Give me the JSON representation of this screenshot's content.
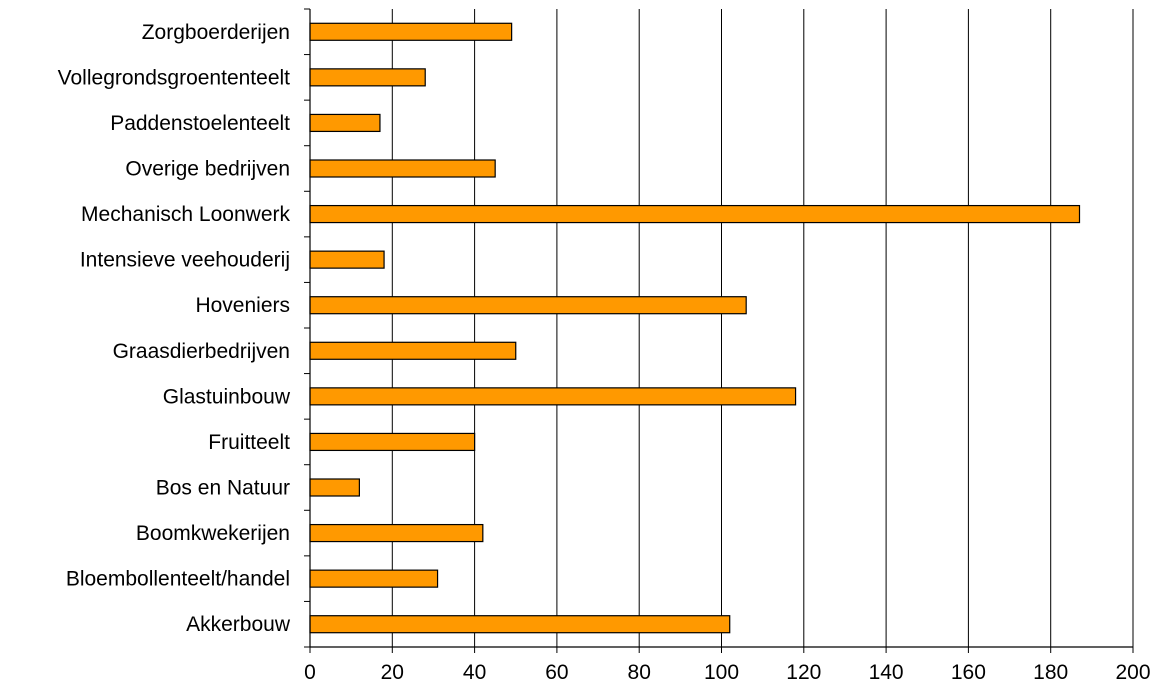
{
  "chart_data": {
    "type": "bar",
    "orientation": "horizontal",
    "categories": [
      "Zorgboerderijen",
      "Vollegrondsgroententeelt",
      "Paddenstoelenteelt",
      "Overige bedrijven",
      "Mechanisch Loonwerk",
      "Intensieve veehouderij",
      "Hoveniers",
      "Graasdierbedrijven",
      "Glastuinbouw",
      "Fruitteelt",
      "Bos en Natuur",
      "Boomkwekerijen",
      "Bloembollenteelt/handel",
      "Akkerbouw"
    ],
    "values": [
      49,
      28,
      17,
      45,
      187,
      18,
      106,
      50,
      118,
      40,
      12,
      42,
      31,
      102
    ],
    "xlim": [
      0,
      200
    ],
    "xticks": [
      0,
      20,
      40,
      60,
      80,
      100,
      120,
      140,
      160,
      180,
      200
    ],
    "title": "",
    "xlabel": "",
    "ylabel": "",
    "grid": "vertical",
    "legend": "none",
    "bar_color": "#FF9900",
    "bar_border_color": "#000000"
  }
}
